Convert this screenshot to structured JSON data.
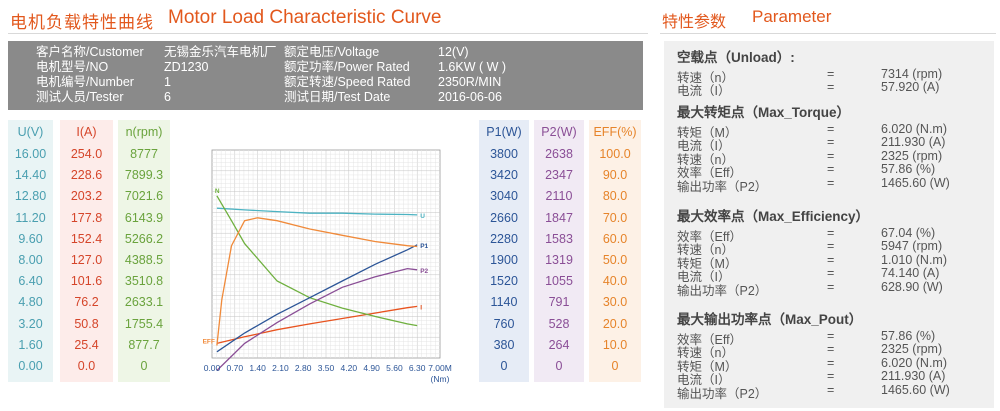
{
  "header": {
    "title_cn": "电机负载特性曲线",
    "title_en": "Motor Load Characteristic Curve"
  },
  "info": {
    "customer_label": "客户名称/Customer",
    "customer_value": "无锡金乐汽车电机厂",
    "model_label": "电机型号/NO",
    "model_value": "ZD1230",
    "number_label": "电机编号/Number",
    "number_value": "1",
    "tester_label": "测试人员/Tester",
    "tester_value": "6",
    "voltage_label": "额定电压/Voltage",
    "voltage_value": "12(V)",
    "power_label": "额定功率/Power Rated",
    "power_value": "1.6KW ( W )",
    "speed_label": "额定转速/Speed Rated",
    "speed_value": "2350R/MIN",
    "date_label": "测试日期/Test Date",
    "date_value": "2016-06-06"
  },
  "scales": {
    "u": {
      "header": "U(V)",
      "values": [
        "16.00",
        "14.40",
        "12.80",
        "11.20",
        "9.60",
        "8.00",
        "6.40",
        "4.80",
        "3.20",
        "1.60",
        "0.00"
      ]
    },
    "i": {
      "header": "I(A)",
      "values": [
        "254.0",
        "228.6",
        "203.2",
        "177.8",
        "152.4",
        "127.0",
        "101.6",
        "76.2",
        "50.8",
        "25.4",
        "0.0"
      ]
    },
    "n": {
      "header": "n(rpm)",
      "values": [
        "8777",
        "7899.3",
        "7021.6",
        "6143.9",
        "5266.2",
        "4388.5",
        "3510.8",
        "2633.1",
        "1755.4",
        "877.7",
        "0"
      ]
    },
    "p1": {
      "header": "P1(W)",
      "values": [
        "3800",
        "3420",
        "3040",
        "2660",
        "2280",
        "1900",
        "1520",
        "1140",
        "760",
        "380",
        "0"
      ]
    },
    "p2": {
      "header": "P2(W)",
      "values": [
        "2638",
        "2347",
        "2110",
        "1847",
        "1583",
        "1319",
        "1055",
        "791",
        "528",
        "264",
        "0"
      ]
    },
    "eff": {
      "header": "EFF(%)",
      "values": [
        "100.0",
        "90.0",
        "80.0",
        "70.0",
        "60.0",
        "50.0",
        "40.0",
        "30.0",
        "20.0",
        "10.0",
        "0"
      ]
    }
  },
  "chart_data": {
    "type": "line",
    "x_ticks": [
      "0.00",
      "0.70",
      "1.40",
      "2.10",
      "2.80",
      "3.50",
      "4.20",
      "4.90",
      "5.60",
      "6.30",
      "7.00M"
    ],
    "x_unit": "(Nm)",
    "xlim": [
      0,
      7.0
    ],
    "grid": true,
    "series": [
      {
        "name": "I",
        "color": "#e8531f",
        "x": [
          0.15,
          1.0,
          2.0,
          3.0,
          4.0,
          5.0,
          6.0,
          6.3
        ],
        "y": [
          0.35,
          0.51,
          0.68,
          0.82,
          0.95,
          1.08,
          1.21,
          1.24
        ]
      },
      {
        "name": "U",
        "color": "#4cb3c2",
        "x": [
          0.15,
          1.0,
          2.0,
          3.0,
          4.0,
          5.0,
          6.0,
          6.3
        ],
        "y": [
          3.6,
          3.56,
          3.52,
          3.48,
          3.48,
          3.46,
          3.45,
          3.44
        ]
      },
      {
        "name": "N",
        "color": "#6fb03f",
        "x": [
          0.15,
          0.6,
          1.0,
          2.0,
          3.0,
          4.0,
          5.0,
          6.0,
          6.3
        ],
        "y": [
          3.9,
          3.3,
          2.75,
          1.85,
          1.45,
          1.2,
          1.0,
          0.82,
          0.78
        ]
      },
      {
        "name": "P1",
        "color": "#2c5597",
        "x": [
          0.15,
          1.0,
          2.0,
          3.0,
          4.0,
          5.0,
          6.0,
          6.3
        ],
        "y": [
          0.15,
          0.6,
          1.05,
          1.45,
          1.85,
          2.25,
          2.6,
          2.72
        ]
      },
      {
        "name": "P2",
        "color": "#8a4e96",
        "x": [
          0.15,
          1.0,
          2.0,
          3.0,
          4.0,
          5.0,
          6.0,
          6.3
        ],
        "y": [
          -0.3,
          0.35,
          0.85,
          1.3,
          1.7,
          1.95,
          2.15,
          2.12
        ]
      },
      {
        "name": "EFF",
        "color": "#f08a3a",
        "x": [
          0.15,
          0.3,
          0.6,
          1.0,
          1.4,
          2.0,
          3.0,
          4.0,
          5.0,
          6.0,
          6.3
        ],
        "y": [
          0.3,
          1.4,
          2.7,
          3.3,
          3.37,
          3.3,
          3.1,
          2.95,
          2.8,
          2.7,
          2.68
        ]
      }
    ]
  },
  "parameter": {
    "title_cn": "特性参数",
    "title_en": "Parameter",
    "sections": [
      {
        "title": "空载点（Unload）:",
        "rows": [
          {
            "k": "转速（n）",
            "v": "7314 (rpm)"
          },
          {
            "k": "电流（I）",
            "v": "57.920 (A)"
          }
        ]
      },
      {
        "title": "最大转矩点（Max_Torque）",
        "rows": [
          {
            "k": "转矩（M）",
            "v": "6.020 (N.m)"
          },
          {
            "k": "电流（I）",
            "v": "211.930 (A)"
          },
          {
            "k": "转速（n）",
            "v": "2325 (rpm)"
          },
          {
            "k": "效率（Eff）",
            "v": "57.86 (%)"
          },
          {
            "k": "输出功率（P2）",
            "v": "1465.60 (W)"
          }
        ]
      },
      {
        "title": "最大效率点（Max_Efficiency）",
        "rows": [
          {
            "k": "效率（Eff）",
            "v": "67.04 (%)"
          },
          {
            "k": "转速（n）",
            "v": "5947 (rpm)"
          },
          {
            "k": "转矩（M）",
            "v": "1.010 (N.m)"
          },
          {
            "k": "电流（I）",
            "v": "74.140 (A)"
          },
          {
            "k": "输出功率（P2）",
            "v": "628.90 (W)"
          }
        ]
      },
      {
        "title": "最大输出功率点（Max_Pout）",
        "rows": [
          {
            "k": "效率（Eff）",
            "v": "57.86 (%)"
          },
          {
            "k": "转速（n）",
            "v": "2325 (rpm)"
          },
          {
            "k": "转矩（M）",
            "v": "6.020 (N.m)"
          },
          {
            "k": "电流（I）",
            "v": "211.930 (A)"
          },
          {
            "k": "输出功率（P2）",
            "v": "1465.60 (W)"
          }
        ]
      }
    ],
    "eq": "="
  }
}
